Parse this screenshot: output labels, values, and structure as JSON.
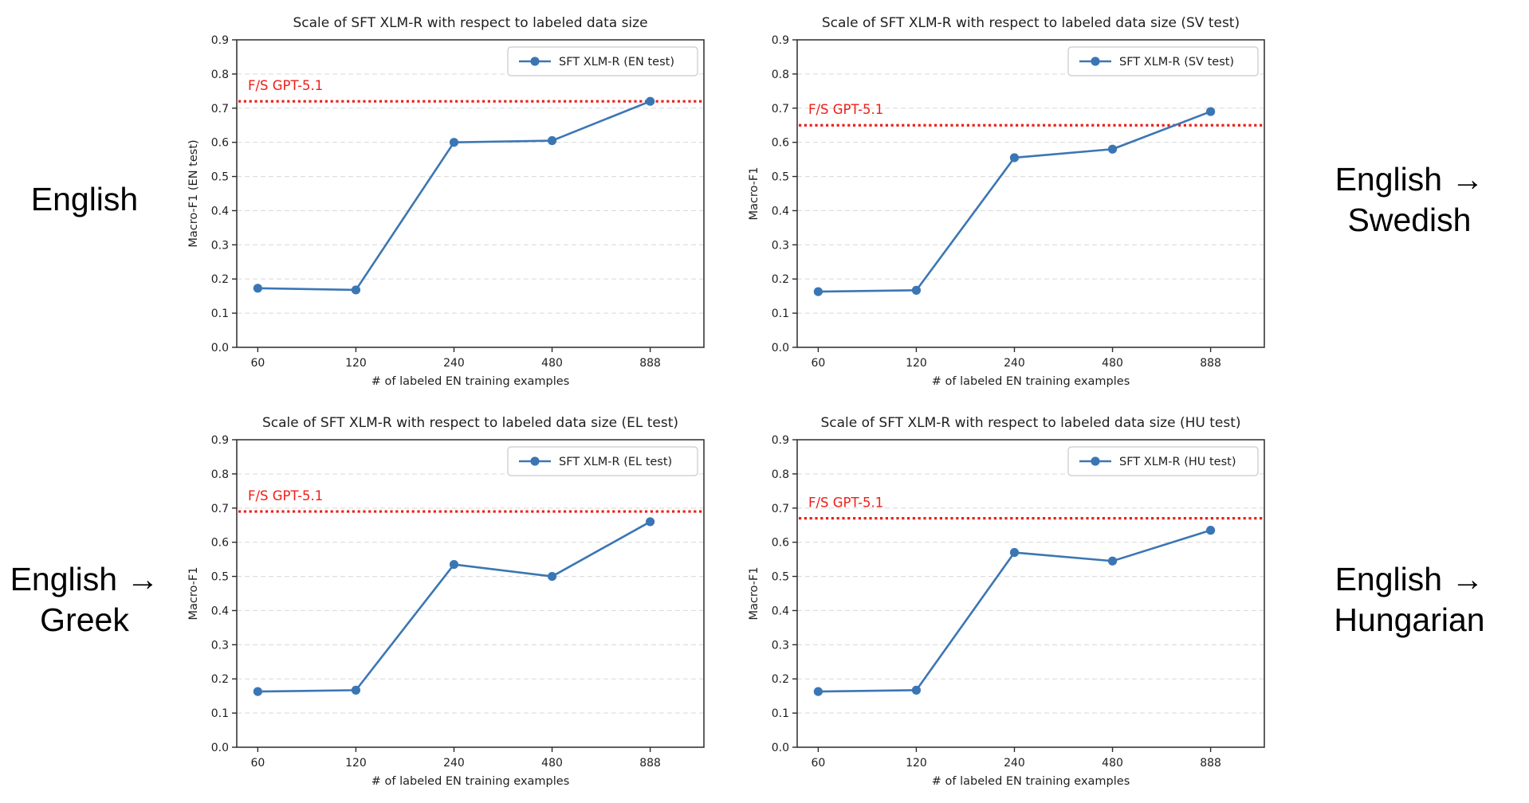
{
  "colors": {
    "series_blue": "#3b76b4",
    "threshold_red": "#ee1e17",
    "grid_gray": "#dcdcdc",
    "spine_dark": "#2b2b2b",
    "text_dark": "#1f1f1f",
    "legend_border": "#c9c9c9",
    "background": "#ffffff"
  },
  "side_labels": [
    {
      "line1": "English",
      "line2": ""
    },
    {
      "line1": "English →",
      "line2": "Swedish"
    },
    {
      "line1": "English →",
      "line2": "Greek"
    },
    {
      "line1": "English →",
      "line2": "Hungarian"
    }
  ],
  "chart_data": [
    {
      "type": "line",
      "title": "Scale of SFT XLM-R with respect to labeled data size",
      "xlabel": "# of labeled EN training examples",
      "ylabel": "Macro-F1 (EN test)",
      "x": [
        60,
        120,
        240,
        480,
        888
      ],
      "x_ticklabels": [
        "60",
        "120",
        "240",
        "480",
        "888"
      ],
      "ylim": [
        0.0,
        0.9
      ],
      "yticks": [
        "0.0",
        "0.1",
        "0.2",
        "0.3",
        "0.4",
        "0.5",
        "0.6",
        "0.7",
        "0.8",
        "0.9"
      ],
      "grid": true,
      "legend_position": "upper right",
      "series": [
        {
          "name": "SFT XLM-R (EN test)",
          "values": [
            0.173,
            0.168,
            0.6,
            0.605,
            0.72
          ]
        }
      ],
      "threshold": {
        "label": "F/S GPT-5.1",
        "value": 0.72
      }
    },
    {
      "type": "line",
      "title": "Scale of SFT XLM-R with respect to labeled data size (SV test)",
      "xlabel": "# of labeled EN training examples",
      "ylabel": "Macro-F1",
      "x": [
        60,
        120,
        240,
        480,
        888
      ],
      "x_ticklabels": [
        "60",
        "120",
        "240",
        "480",
        "888"
      ],
      "ylim": [
        0.0,
        0.9
      ],
      "yticks": [
        "0.0",
        "0.1",
        "0.2",
        "0.3",
        "0.4",
        "0.5",
        "0.6",
        "0.7",
        "0.8",
        "0.9"
      ],
      "grid": true,
      "legend_position": "upper right",
      "series": [
        {
          "name": "SFT XLM-R (SV test)",
          "values": [
            0.163,
            0.167,
            0.555,
            0.58,
            0.69
          ]
        }
      ],
      "threshold": {
        "label": "F/S GPT-5.1",
        "value": 0.65
      }
    },
    {
      "type": "line",
      "title": "Scale of SFT XLM-R with respect to labeled data size (EL test)",
      "xlabel": "# of labeled EN training examples",
      "ylabel": "Macro-F1",
      "x": [
        60,
        120,
        240,
        480,
        888
      ],
      "x_ticklabels": [
        "60",
        "120",
        "240",
        "480",
        "888"
      ],
      "ylim": [
        0.0,
        0.9
      ],
      "yticks": [
        "0.0",
        "0.1",
        "0.2",
        "0.3",
        "0.4",
        "0.5",
        "0.6",
        "0.7",
        "0.8",
        "0.9"
      ],
      "grid": true,
      "legend_position": "upper right",
      "series": [
        {
          "name": "SFT XLM-R (EL test)",
          "values": [
            0.163,
            0.167,
            0.535,
            0.5,
            0.66
          ]
        }
      ],
      "threshold": {
        "label": "F/S GPT-5.1",
        "value": 0.69
      }
    },
    {
      "type": "line",
      "title": "Scale of SFT XLM-R with respect to labeled data size (HU test)",
      "xlabel": "# of labeled EN training examples",
      "ylabel": "Macro-F1",
      "x": [
        60,
        120,
        240,
        480,
        888
      ],
      "x_ticklabels": [
        "60",
        "120",
        "240",
        "480",
        "888"
      ],
      "ylim": [
        0.0,
        0.9
      ],
      "yticks": [
        "0.0",
        "0.1",
        "0.2",
        "0.3",
        "0.4",
        "0.5",
        "0.6",
        "0.7",
        "0.8",
        "0.9"
      ],
      "grid": true,
      "legend_position": "upper right",
      "series": [
        {
          "name": "SFT XLM-R (HU test)",
          "values": [
            0.163,
            0.167,
            0.57,
            0.545,
            0.635
          ]
        }
      ],
      "threshold": {
        "label": "F/S GPT-5.1",
        "value": 0.67
      }
    }
  ]
}
